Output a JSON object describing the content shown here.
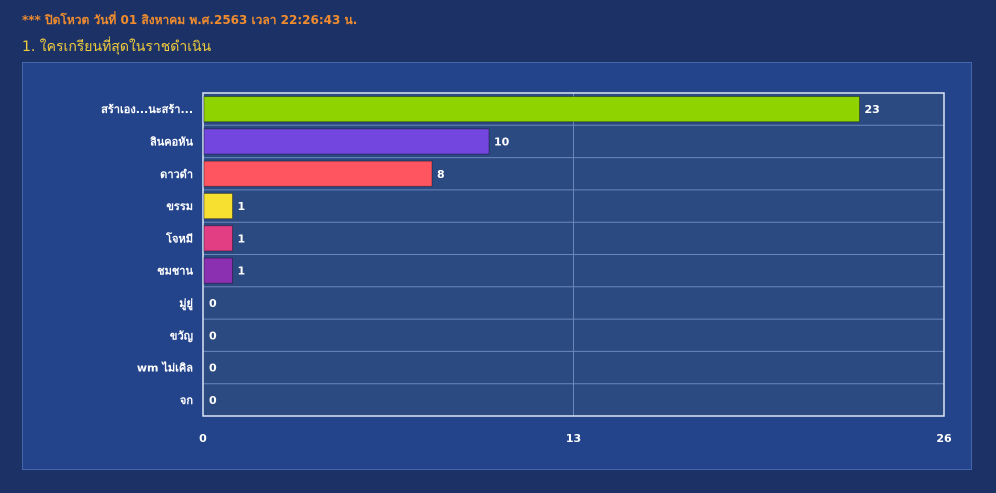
{
  "header": {
    "notice": "*** ปิดโหวต วันที่ 01 สิงหาคม พ.ศ.2563 เวลา 22:26:43 น.",
    "question": "1. ใครเกรียนที่สุดในราชดำเนิน"
  },
  "chart_data": {
    "type": "bar",
    "orientation": "horizontal",
    "categories": [
      "สร้าเอง...นะสร้า...",
      "ลินคอหัน",
      "ดาวดำ",
      "ขรรม",
      "โจหมี",
      "ชมชาน",
      "มู่ยู่",
      "ขวัญ",
      "wm ไม่เคิล",
      "จก"
    ],
    "values": [
      23,
      10,
      8,
      1,
      1,
      1,
      0,
      0,
      0,
      0
    ],
    "colors": [
      "#8fd400",
      "#7446e0",
      "#ff5560",
      "#f8e030",
      "#e23e84",
      "#8a30b0",
      "#cccccc",
      "#cccccc",
      "#cccccc",
      "#cccccc"
    ],
    "xlim": [
      0,
      26
    ],
    "xticks": [
      "0",
      "13",
      "26"
    ],
    "grid": true,
    "plot_background": "#2c4a82",
    "title": "",
    "xlabel": "",
    "ylabel": ""
  }
}
